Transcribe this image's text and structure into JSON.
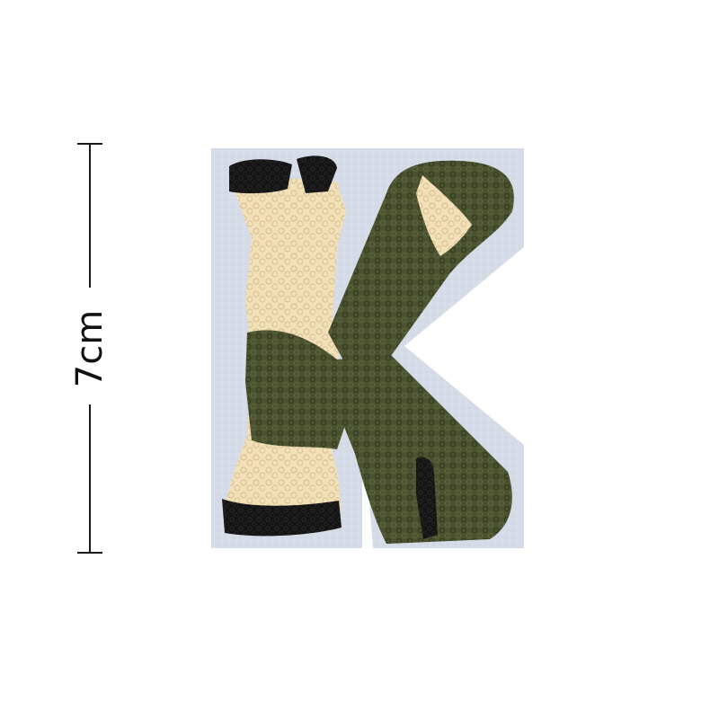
{
  "dimension": {
    "label": "7cm"
  },
  "patch": {
    "letter": "K",
    "colors": {
      "felt": "#d6dce7",
      "cream": "#f1e0b8",
      "olive": "#4b5230",
      "black": "#141414"
    }
  }
}
